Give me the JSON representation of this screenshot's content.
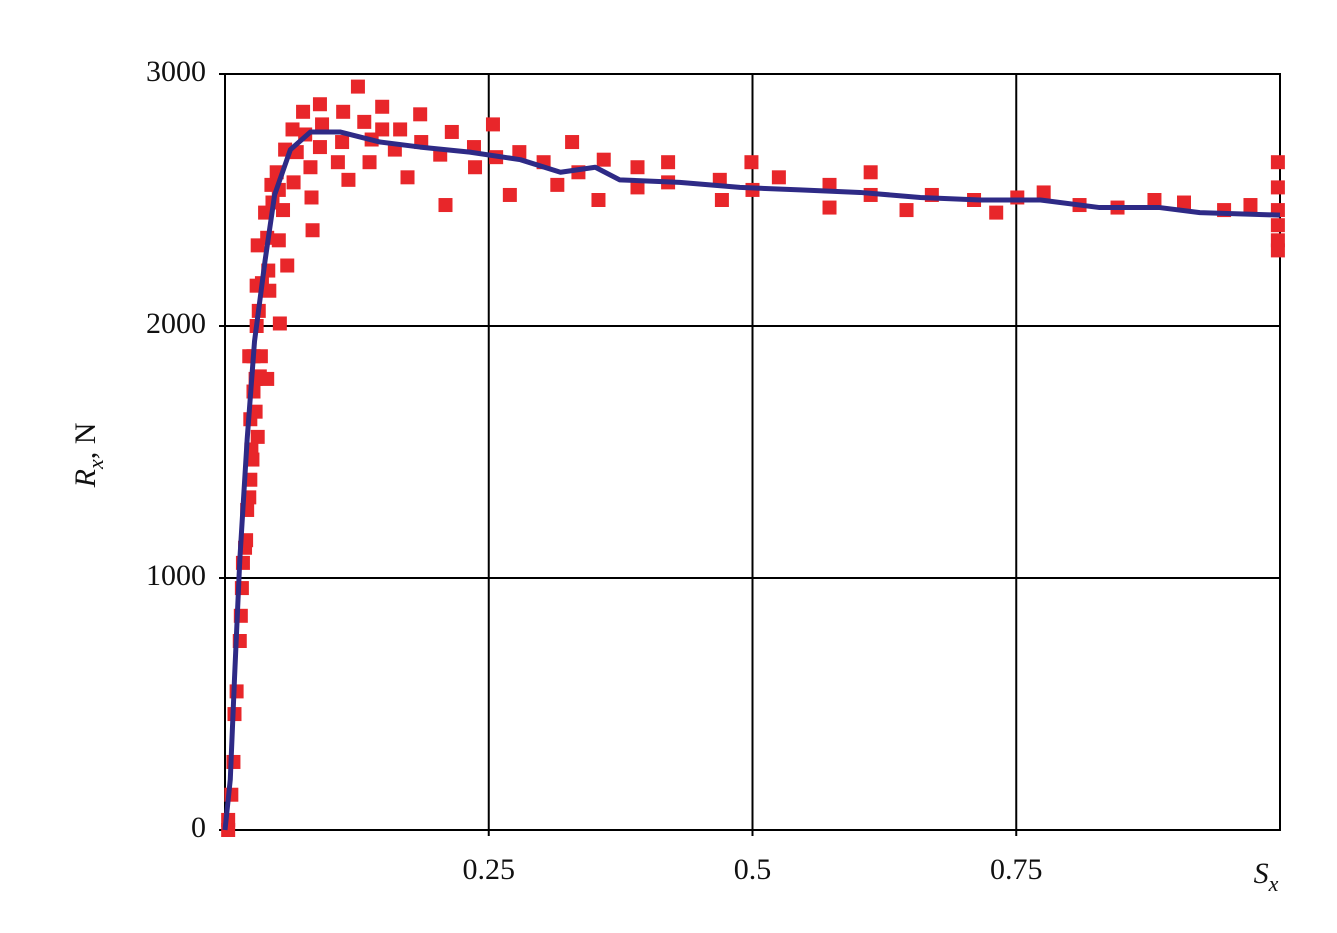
{
  "chart_data": {
    "type": "scatter",
    "xlabel": "S",
    "xlabel_subscript": "x",
    "ylabel": "R",
    "ylabel_subscript": "x",
    "ylabel_unit": ", N",
    "xlim": [
      0,
      1
    ],
    "ylim": [
      0,
      3000
    ],
    "xticks": [
      0.25,
      0.5,
      0.75
    ],
    "yticks": [
      0,
      1000,
      2000,
      3000
    ],
    "grid": true,
    "series": [
      {
        "type": "scatter",
        "color": "#e8262a",
        "x": [
          0.003,
          0.003,
          0.006,
          0.008,
          0.009,
          0.011,
          0.014,
          0.015,
          0.016,
          0.017,
          0.019,
          0.02,
          0.021,
          0.023,
          0.024,
          0.025,
          0.026,
          0.024,
          0.027,
          0.029,
          0.031,
          0.029,
          0.033,
          0.04,
          0.023,
          0.027,
          0.034,
          0.03,
          0.032,
          0.035,
          0.03,
          0.031,
          0.042,
          0.041,
          0.04,
          0.038,
          0.044,
          0.045,
          0.051,
          0.052,
          0.049,
          0.051,
          0.057,
          0.055,
          0.059,
          0.064,
          0.065,
          0.068,
          0.074,
          0.076,
          0.081,
          0.082,
          0.083,
          0.09,
          0.09,
          0.092,
          0.107,
          0.111,
          0.112,
          0.117,
          0.126,
          0.132,
          0.137,
          0.139,
          0.149,
          0.149,
          0.161,
          0.166,
          0.173,
          0.185,
          0.186,
          0.204,
          0.209,
          0.215,
          0.236,
          0.237,
          0.254,
          0.257,
          0.27,
          0.279,
          0.302,
          0.315,
          0.329,
          0.335,
          0.354,
          0.359,
          0.391,
          0.391,
          0.42,
          0.42,
          0.469,
          0.471,
          0.499,
          0.5,
          0.525,
          0.573,
          0.573,
          0.612,
          0.612,
          0.646,
          0.67,
          0.71,
          0.731,
          0.751,
          0.776,
          0.81,
          0.846,
          0.881,
          0.909,
          0.947,
          0.972,
          0.998,
          0.998,
          0.998,
          0.998,
          0.998,
          0.998
        ],
        "values": [
          0,
          40,
          140,
          270,
          460,
          550,
          750,
          850,
          960,
          1060,
          1120,
          1150,
          1270,
          1320,
          1390,
          1510,
          1470,
          1630,
          1740,
          1660,
          1560,
          1790,
          1800,
          1790,
          1880,
          1880,
          1880,
          2000,
          2060,
          2170,
          2160,
          2320,
          2140,
          2220,
          2350,
          2450,
          2560,
          2490,
          2340,
          2010,
          2610,
          2540,
          2700,
          2460,
          2240,
          2780,
          2570,
          2690,
          2850,
          2760,
          2630,
          2510,
          2380,
          2880,
          2710,
          2800,
          2650,
          2730,
          2850,
          2580,
          2950,
          2810,
          2650,
          2740,
          2870,
          2780,
          2700,
          2780,
          2590,
          2840,
          2730,
          2680,
          2480,
          2770,
          2710,
          2630,
          2800,
          2670,
          2520,
          2690,
          2650,
          2560,
          2730,
          2610,
          2500,
          2660,
          2630,
          2550,
          2650,
          2570,
          2580,
          2500,
          2650,
          2540,
          2590,
          2560,
          2470,
          2610,
          2520,
          2460,
          2520,
          2500,
          2450,
          2510,
          2530,
          2480,
          2470,
          2500,
          2490,
          2460,
          2480,
          2650,
          2550,
          2460,
          2400,
          2340,
          2300
        ]
      },
      {
        "type": "line",
        "color": "#2e2a86",
        "x": [
          0,
          0.005,
          0.009,
          0.014,
          0.021,
          0.028,
          0.038,
          0.047,
          0.062,
          0.081,
          0.109,
          0.147,
          0.185,
          0.232,
          0.28,
          0.318,
          0.351,
          0.374,
          0.431,
          0.488,
          0.545,
          0.602,
          0.659,
          0.716,
          0.773,
          0.829,
          0.886,
          0.924,
          1.0
        ],
        "values": [
          0,
          200,
          600,
          1070,
          1550,
          1940,
          2260,
          2520,
          2700,
          2770,
          2770,
          2730,
          2710,
          2690,
          2660,
          2610,
          2630,
          2580,
          2570,
          2550,
          2540,
          2530,
          2510,
          2500,
          2500,
          2470,
          2470,
          2450,
          2440
        ]
      }
    ]
  }
}
